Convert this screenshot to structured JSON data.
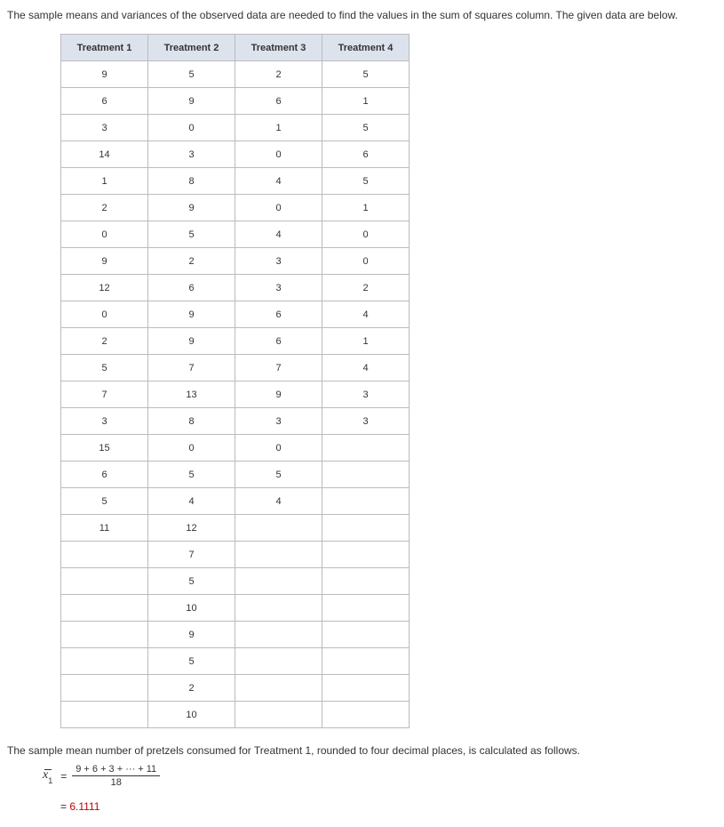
{
  "intro": "The sample means and variances of the observed data are needed to find the values in the sum of squares column. The given data are below.",
  "table": {
    "headers": [
      "Treatment 1",
      "Treatment 2",
      "Treatment 3",
      "Treatment 4"
    ],
    "rows": [
      [
        "9",
        "5",
        "2",
        "5"
      ],
      [
        "6",
        "9",
        "6",
        "1"
      ],
      [
        "3",
        "0",
        "1",
        "5"
      ],
      [
        "14",
        "3",
        "0",
        "6"
      ],
      [
        "1",
        "8",
        "4",
        "5"
      ],
      [
        "2",
        "9",
        "0",
        "1"
      ],
      [
        "0",
        "5",
        "4",
        "0"
      ],
      [
        "9",
        "2",
        "3",
        "0"
      ],
      [
        "12",
        "6",
        "3",
        "2"
      ],
      [
        "0",
        "9",
        "6",
        "4"
      ],
      [
        "2",
        "9",
        "6",
        "1"
      ],
      [
        "5",
        "7",
        "7",
        "4"
      ],
      [
        "7",
        "13",
        "9",
        "3"
      ],
      [
        "3",
        "8",
        "3",
        "3"
      ],
      [
        "15",
        "0",
        "0",
        ""
      ],
      [
        "6",
        "5",
        "5",
        ""
      ],
      [
        "5",
        "4",
        "4",
        ""
      ],
      [
        "11",
        "12",
        "",
        ""
      ],
      [
        "",
        "7",
        "",
        ""
      ],
      [
        "",
        "5",
        "",
        ""
      ],
      [
        "",
        "10",
        "",
        ""
      ],
      [
        "",
        "9",
        "",
        ""
      ],
      [
        "",
        "5",
        "",
        ""
      ],
      [
        "",
        "2",
        "",
        ""
      ],
      [
        "",
        "10",
        "",
        ""
      ]
    ],
    "header_bg": "#dde3ec",
    "border_color": "#bbbbbb"
  },
  "explain": "The sample mean number of pretzels consumed for Treatment 1, rounded to four decimal places, is calculated as follows.",
  "formula": {
    "variable_letter": "x",
    "variable_sub": "1",
    "numerator": "9 + 6 + 3 + ··· + 11",
    "denominator": "18",
    "result_prefix": "= ",
    "result_value": "6.1111",
    "result_color": "#c00000"
  }
}
